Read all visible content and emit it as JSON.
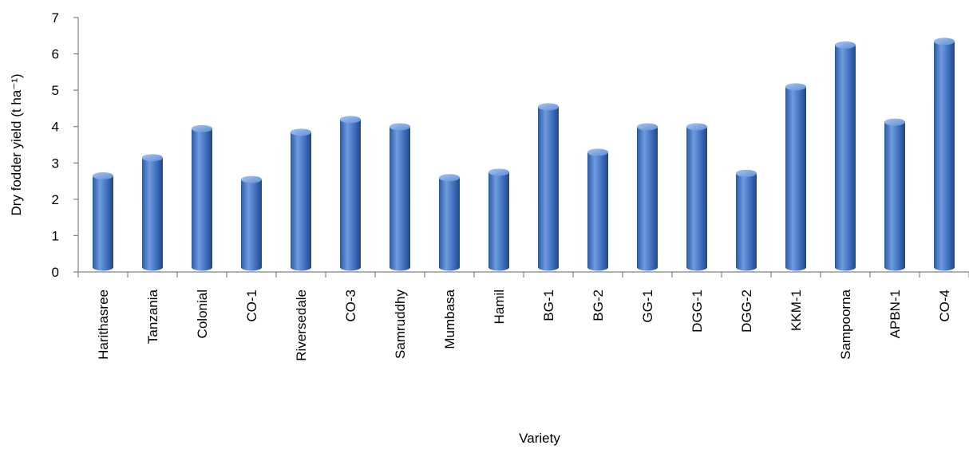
{
  "chart_data": {
    "type": "bar",
    "style": "3d-cylinder",
    "xlabel": "Variety",
    "ylabel": "Dry fodder yield (t ha⁻¹)",
    "ylim": [
      0,
      7
    ],
    "yticks": [
      "0",
      "1",
      "2",
      "3",
      "4",
      "5",
      "6",
      "7"
    ],
    "grid": false,
    "bar_color": "#4a7cc4",
    "categories": [
      "Harithasree",
      "Tanzania",
      "Colonial",
      "CO-1",
      "Riversedale",
      "CO-3",
      "Samruddhy",
      "Mumbasa",
      "Hamil",
      "BG-1",
      "BG-2",
      "GG-1",
      "DGG-1",
      "DGG-2",
      "KKM-1",
      "Sampoorna",
      "APBN-1",
      "CO-4"
    ],
    "values": [
      2.6,
      3.1,
      3.9,
      2.5,
      3.8,
      4.15,
      3.95,
      2.55,
      2.7,
      4.5,
      3.25,
      3.95,
      3.95,
      2.67,
      5.05,
      6.2,
      4.08,
      6.3
    ]
  }
}
